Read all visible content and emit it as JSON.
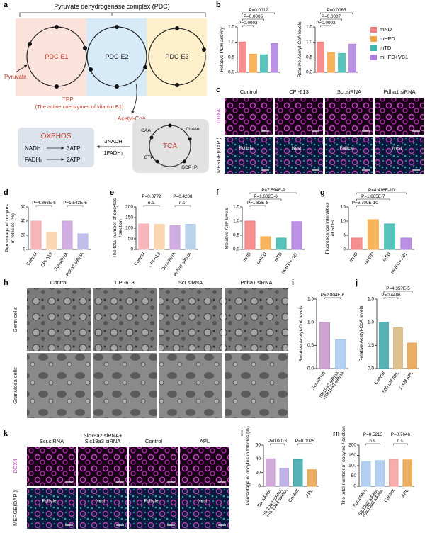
{
  "panel_letters": [
    "a",
    "b",
    "c",
    "d",
    "e",
    "f",
    "g",
    "h",
    "i",
    "j",
    "k",
    "l",
    "m"
  ],
  "diagram": {
    "title": "Pyruvate dehydrogenase complex (PDC)",
    "enzymes": [
      "PDC-E1",
      "PDC-E2",
      "PDC-E3"
    ],
    "pyruvate": "Pyruvate",
    "tpp": "TPP",
    "tpp_note": "(The active coenzymes of vitamin B1)",
    "acetyl_coa": "Acetyl-CoA",
    "oxphos": {
      "title": "OXPHOS",
      "rows": [
        [
          "NADH",
          "3ATP"
        ],
        [
          "FADH₂",
          "2ATP"
        ]
      ]
    },
    "tca": {
      "title": "TCA",
      "inputs": [
        "3NADH",
        "1FADH₂"
      ],
      "metabolites": [
        "OAA",
        "Citrate",
        "GTP",
        "GDP+Pi"
      ]
    }
  },
  "chart_data": [
    {
      "type": "bar",
      "ylabel": [
        "Relative PDH activity"
      ],
      "values": [
        1.0,
        0.6,
        0.58,
        0.95
      ],
      "colors": [
        "#f47c7c",
        "#f5a742",
        "#3cb9b0",
        "#b07fe0"
      ],
      "ylim": [
        0,
        1.5
      ],
      "yticks": [
        {
          "value": 0,
          "label": "0.0"
        },
        0.5,
        {
          "value": 1,
          "label": "1.0"
        },
        1.5
      ],
      "annotations": [
        "P=0.0003",
        "P=0.0005",
        "P=0.0012"
      ]
    },
    {
      "type": "bar",
      "ylabel": [
        "Relative Acetyl-CoA levels"
      ],
      "categories": [
        "mND",
        "mHFD",
        "mTD",
        "mHFD+VB1"
      ],
      "values": [
        1.0,
        0.65,
        0.62,
        0.93
      ],
      "colors": [
        "#f47c7c",
        "#f5a742",
        "#3cb9b0",
        "#b07fe0"
      ],
      "show_xlabels": false,
      "legend": true,
      "ylim": [
        0,
        1.5
      ],
      "yticks": [
        {
          "value": 0,
          "label": "0.0"
        },
        0.5,
        {
          "value": 1,
          "label": "1.0"
        },
        1.5
      ],
      "annotations": [
        "P=0.0002",
        "P=0.0007",
        "P=0.0065"
      ]
    },
    {
      "type": "bar",
      "ylabel": [
        "Percentage of oocytes",
        "in follicles (%)"
      ],
      "categories": [
        "Control",
        "CPI-613",
        "Scr.siRNA",
        "Pdha1 siRNA"
      ],
      "values": [
        40,
        24,
        40,
        22
      ],
      "colors": [
        "#f6a9b0",
        "#f9cfa6",
        "#c9a0dc",
        "#b9b4ea"
      ],
      "ylim": [
        0,
        60
      ],
      "yticks": [
        0,
        20,
        40,
        60
      ],
      "annotations": [
        "P=4.866E-6",
        "P=1.543E-6"
      ]
    },
    {
      "type": "bar",
      "ylabel": [
        "The total number of oocytes",
        "/ section"
      ],
      "categories": [
        "Control",
        "CPI-613",
        "Scr.siRNA",
        "Pdha1 siRNA"
      ],
      "values": [
        120,
        118,
        112,
        118
      ],
      "colors": [
        "#f6a9b0",
        "#f9cfa6",
        "#c9a0dc",
        "#aecbe8"
      ],
      "ylim": [
        0,
        200
      ],
      "yticks": [
        0,
        50,
        100,
        150,
        200
      ],
      "annotations": [
        "P=0.8772",
        "n.s.",
        "P=0.4208",
        "n.s."
      ]
    },
    {
      "type": "bar",
      "ylabel": [
        "Relative ATP levels"
      ],
      "categories": [
        "mND",
        "mHFD",
        "mTD",
        "mHFD+VB1"
      ],
      "values": [
        1.0,
        0.45,
        0.4,
        0.98
      ],
      "colors": [
        "#f47c7c",
        "#f5a742",
        "#3cb9b0",
        "#b07fe0"
      ],
      "ylim": [
        0,
        1.5
      ],
      "yticks": [
        {
          "value": 0,
          "label": "0.0"
        },
        0.5,
        {
          "value": 1,
          "label": "1.0"
        },
        1.5
      ],
      "annotations": [
        "P=1.83E-8",
        "P=1.602E-6",
        "P=7.594E-9"
      ]
    },
    {
      "type": "bar",
      "ylabel": [
        "Fluorescence intensities",
        "of ROS"
      ],
      "categories": [
        "mND",
        "mHFD",
        "mTD",
        "mHFD+VB1"
      ],
      "values": [
        4,
        10.5,
        9,
        4
      ],
      "colors": [
        "#f47c7c",
        "#f5a742",
        "#3cb9b0",
        "#b07fe0"
      ],
      "ylim": [
        0,
        15
      ],
      "yticks": [
        0,
        5,
        10,
        15
      ],
      "annotations": [
        "P=6.709E-10",
        "P=1.865E-7",
        "P=4.416E-10"
      ]
    },
    {
      "type": "bar",
      "ylabel": [
        "Relative Acetyl-CoA levels"
      ],
      "categories": [
        "Scr.siRNA",
        [
          "Slc19a2 siRNA",
          "+Slc19a3 siRNA"
        ]
      ],
      "values": [
        1.0,
        0.62
      ],
      "colors": [
        "#c493c9",
        "#a7c8ef"
      ],
      "ylim": [
        0,
        1.5
      ],
      "yticks": [
        {
          "value": 0,
          "label": "0.0"
        },
        0.5,
        {
          "value": 1,
          "label": "1.0"
        },
        1.5
      ],
      "annotations": [
        "P=2.804E-6"
      ]
    },
    {
      "type": "bar",
      "ylabel": [
        "Relative Acetyl-CoA levels"
      ],
      "categories": [
        "Control",
        "500 μM APL",
        "1 mM APL"
      ],
      "values": [
        1.0,
        0.88,
        0.55
      ],
      "colors": [
        "#3aa5a8",
        "#d9b77f",
        "#e8a04a"
      ],
      "ylim": [
        0,
        1.5
      ],
      "yticks": [
        {
          "value": 0,
          "label": "0.0"
        },
        0.5,
        {
          "value": 1,
          "label": "1.0"
        },
        1.5
      ],
      "annotations": [
        "P=0.4486",
        "P=4.357E-5"
      ]
    },
    {
      "type": "bar",
      "ylabel": [
        "Percentage of oocytes in follicles (%)"
      ],
      "categories": [
        "Scr.siRNA",
        [
          "Slc19a2 siRNA",
          "+Slc19a3 siRNA"
        ],
        "Control",
        "APL"
      ],
      "values": [
        40,
        26,
        39,
        24
      ],
      "colors": [
        "#c99bd3",
        "#b4a6e0",
        "#3aa5a8",
        "#e8a04a"
      ],
      "ylim": [
        0,
        60
      ],
      "yticks": [
        0,
        20,
        40,
        60
      ],
      "annotations": [
        "P=0.0016",
        "P=0.0025"
      ]
    },
    {
      "type": "bar",
      "ylabel": [
        "The total number of oocytes / section"
      ],
      "categories": [
        "Scr.siRNA",
        [
          "Slc19a2 siRNA",
          "+Slc19a3 siRNA"
        ],
        "Control",
        "APL"
      ],
      "values": [
        120,
        125,
        130,
        128
      ],
      "colors": [
        "#a7c8ef",
        "#a7c8ef",
        "#f4a0a0",
        "#e8a04a"
      ],
      "ylim": [
        0,
        200
      ],
      "yticks": [
        0,
        50,
        100,
        150,
        200
      ],
      "annotations": [
        "P=0.5213",
        "n.s.",
        "P=0.7646",
        "n.s."
      ]
    }
  ],
  "images": [
    {
      "columns": [
        "Control",
        "CPI-613",
        "Scr.siRNA",
        "Pdha1 siRNA"
      ],
      "rows": [
        "DDX4",
        "MERGE(DAPI)"
      ],
      "annotations": [
        "Follicle",
        "Nest",
        "Follicle",
        "Nest"
      ]
    },
    {
      "columns": [
        "Control",
        "CPI-613",
        "Scr.siRNA",
        "Pdha1 siRNA"
      ],
      "rows": [
        "Germ cells",
        "Granulosa cells"
      ]
    },
    {
      "columns": [
        "Scr.siRNA",
        [
          "Slc19a2 siRNA+",
          "Slc19a3 siRNA"
        ],
        "Control",
        "APL"
      ],
      "rows": [
        "DDX4",
        "MERGE(DAPI)"
      ],
      "annotations": [
        "Follicle",
        "Nest",
        "Follicle",
        "Nest"
      ]
    }
  ]
}
